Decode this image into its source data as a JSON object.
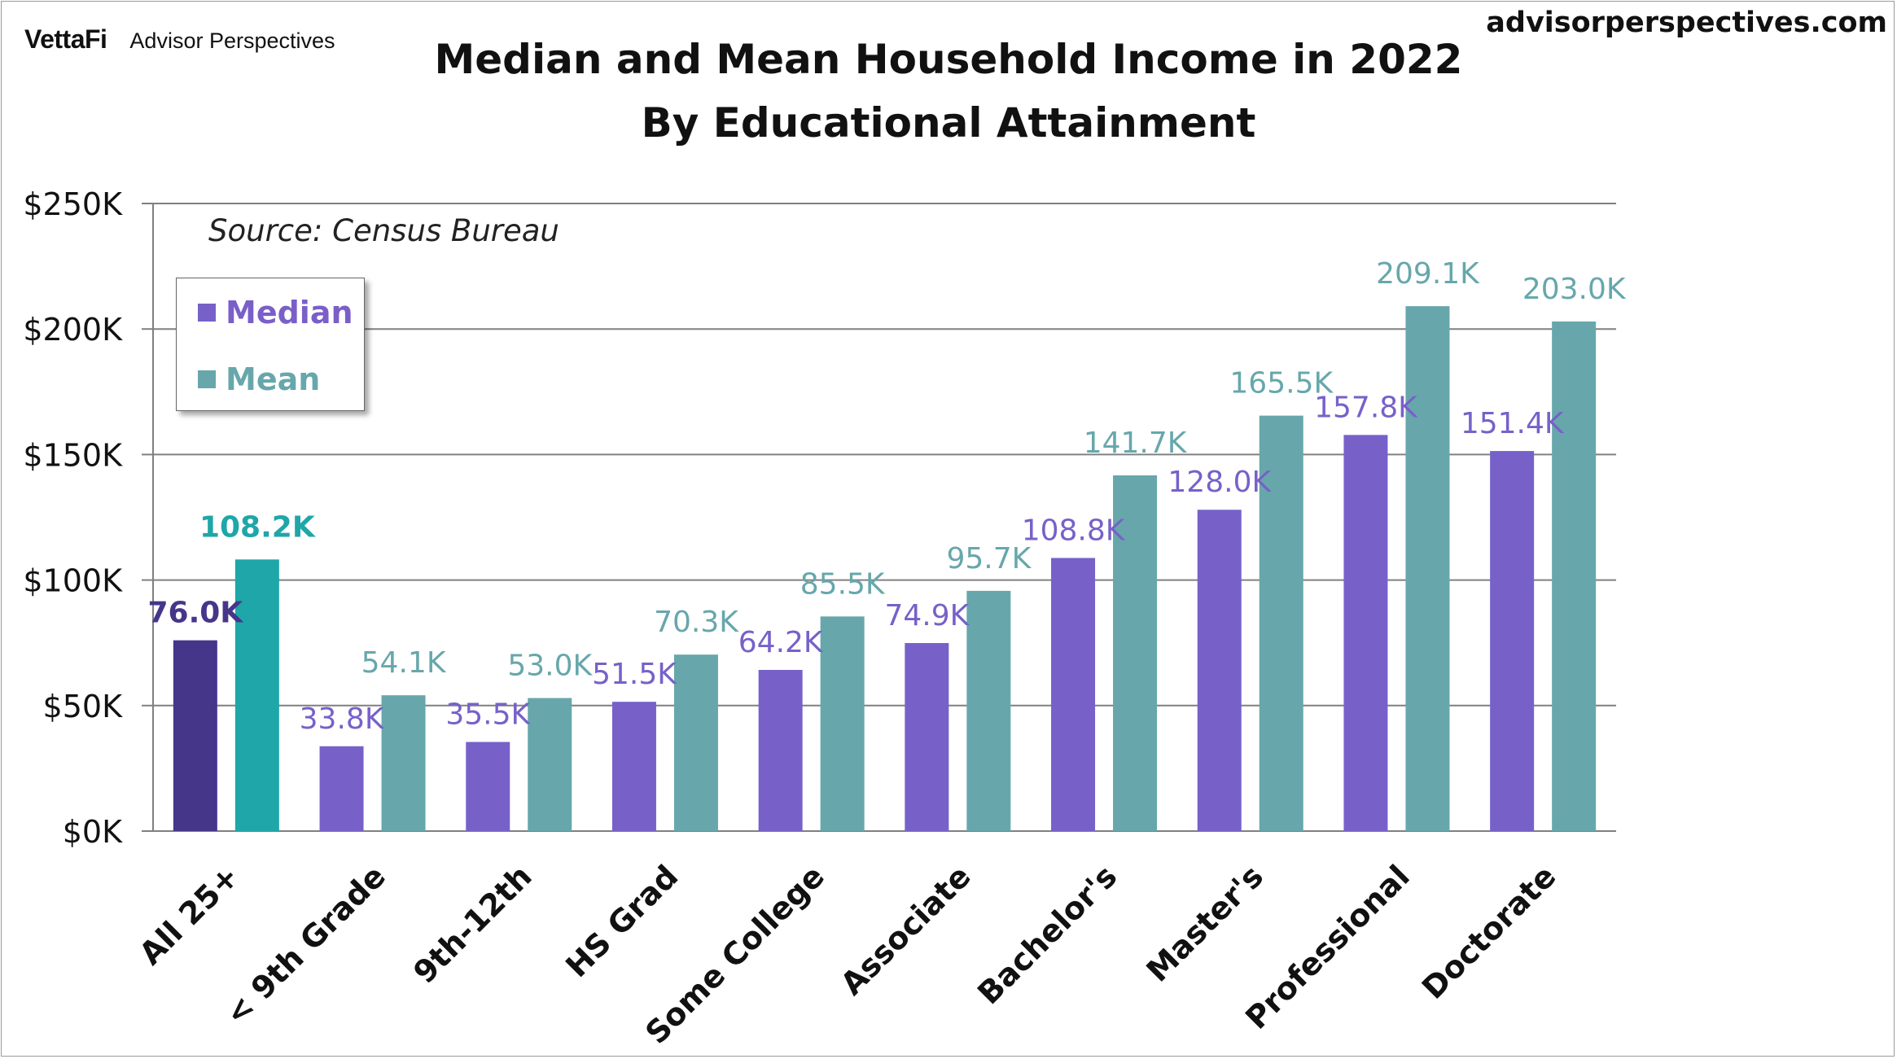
{
  "header": {
    "logo": "VettaFi",
    "brand": "Advisor Perspectives",
    "site": "advisorperspectives.com"
  },
  "colors": {
    "median": "#7761c9",
    "mean": "#67a7ab",
    "highlight_median": "#46368a",
    "highlight_mean": "#1fa6a8",
    "gridline": "#808080"
  },
  "legend": {
    "median": "Median",
    "mean": "Mean"
  },
  "source": "Source: Census Bureau",
  "chart_data": {
    "type": "bar",
    "title": "Median and Mean Household Income in 2022",
    "subtitle": "By Educational Attainment",
    "xlabel": "",
    "ylabel": "",
    "ylim": [
      0,
      250
    ],
    "yticks": [
      0,
      50,
      100,
      150,
      200,
      250
    ],
    "ytick_labels": [
      "$0K",
      "$50K",
      "$100K",
      "$150K",
      "$200K",
      "$250K"
    ],
    "grid": true,
    "categories": [
      "All 25+",
      "< 9th Grade",
      "9th-12th",
      "HS Grad",
      "Some College",
      "Associate",
      "Bachelor's",
      "Master's",
      "Professional",
      "Doctorate"
    ],
    "series": [
      {
        "name": "Median",
        "values": [
          76.0,
          33.8,
          35.5,
          51.5,
          64.2,
          74.9,
          108.8,
          128.0,
          157.8,
          151.4
        ],
        "labels": [
          "76.0K",
          "33.8K",
          "35.5K",
          "51.5K",
          "64.2K",
          "74.9K",
          "108.8K",
          "128.0K",
          "157.8K",
          "151.4K"
        ]
      },
      {
        "name": "Mean",
        "values": [
          108.2,
          54.1,
          53.0,
          70.3,
          85.5,
          95.7,
          141.7,
          165.5,
          209.1,
          203.0
        ],
        "labels": [
          "108.2K",
          "54.1K",
          "53.0K",
          "70.3K",
          "85.5K",
          "95.7K",
          "141.7K",
          "165.5K",
          "209.1K",
          "203.0K"
        ]
      }
    ],
    "highlight_category": "All 25+"
  }
}
